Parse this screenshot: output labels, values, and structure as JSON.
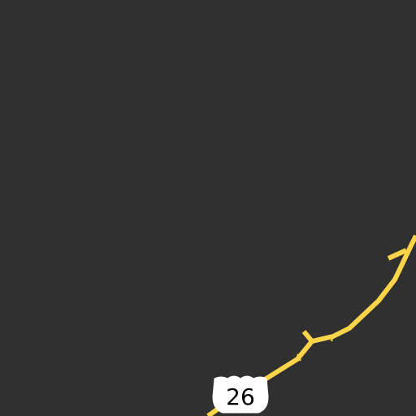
{
  "map": {
    "colors": {
      "background": "#303030",
      "highway": "#fdd54a",
      "shield_fill": "#ffffff",
      "shield_text": "#000000"
    },
    "route_shield": {
      "type": "us-highway",
      "number": "26"
    }
  }
}
